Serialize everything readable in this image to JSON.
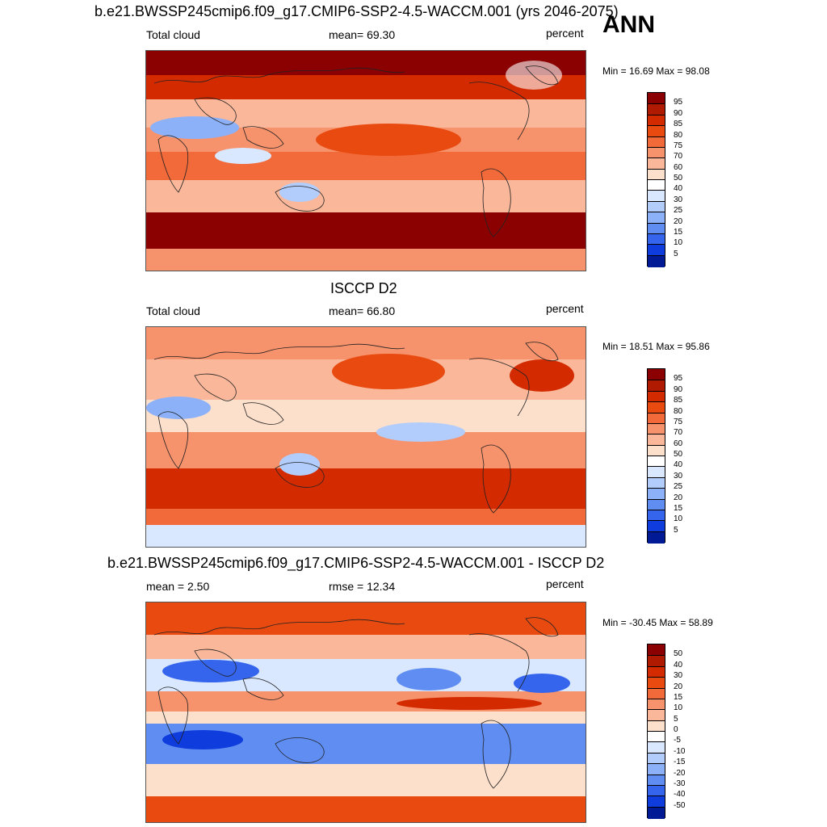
{
  "annotation": "ANN",
  "panels": [
    {
      "title": "b.e21.BWSSP245cmip6.f09_g17.CMIP6-SSP2-4.5-WACCM.001 (yrs 2046-2075)",
      "left_text": "Total cloud",
      "center_text": "mean=  69.30",
      "right_text": "percent",
      "minmax": "Min =  16.69 Max =  98.08",
      "colorbar": {
        "labels": [
          "95",
          "90",
          "85",
          "80",
          "75",
          "70",
          "60",
          "50",
          "40",
          "30",
          "25",
          "20",
          "15",
          "10",
          "5"
        ],
        "colors": [
          "#8b0000",
          "#b01a00",
          "#d42a00",
          "#e84a10",
          "#f26a3a",
          "#f6926c",
          "#fab79a",
          "#fde0cc",
          "#ffffff",
          "#d9e8ff",
          "#b2cdfb",
          "#8cb1f8",
          "#5f8df2",
          "#3565ec",
          "#0f3ddd",
          "#001a96"
        ]
      }
    },
    {
      "title": "ISCCP D2",
      "left_text": "Total cloud",
      "center_text": "mean=  66.80",
      "right_text": "percent",
      "minmax": "Min =  18.51 Max =  95.86",
      "colorbar": {
        "labels": [
          "95",
          "90",
          "85",
          "80",
          "75",
          "70",
          "60",
          "50",
          "40",
          "30",
          "25",
          "20",
          "15",
          "10",
          "5"
        ],
        "colors": [
          "#8b0000",
          "#b01a00",
          "#d42a00",
          "#e84a10",
          "#f26a3a",
          "#f6926c",
          "#fab79a",
          "#fde0cc",
          "#ffffff",
          "#d9e8ff",
          "#b2cdfb",
          "#8cb1f8",
          "#5f8df2",
          "#3565ec",
          "#0f3ddd",
          "#001a96"
        ]
      }
    },
    {
      "title": "b.e21.BWSSP245cmip6.f09_g17.CMIP6-SSP2-4.5-WACCM.001 - ISCCP D2",
      "left_text": "mean =   2.50",
      "center_text": "rmse =  12.34",
      "right_text": "percent",
      "minmax": "Min = -30.45 Max =  58.89",
      "colorbar": {
        "labels": [
          "50",
          "40",
          "30",
          "20",
          "15",
          "10",
          "5",
          "0",
          "-5",
          "-10",
          "-15",
          "-20",
          "-30",
          "-40",
          "-50"
        ],
        "colors": [
          "#8b0000",
          "#b01a00",
          "#d42a00",
          "#e84a10",
          "#f26a3a",
          "#f6926c",
          "#fab79a",
          "#fde0cc",
          "#ffffff",
          "#d9e8ff",
          "#b2cdfb",
          "#8cb1f8",
          "#5f8df2",
          "#3565ec",
          "#0f3ddd",
          "#001a96"
        ]
      }
    }
  ]
}
